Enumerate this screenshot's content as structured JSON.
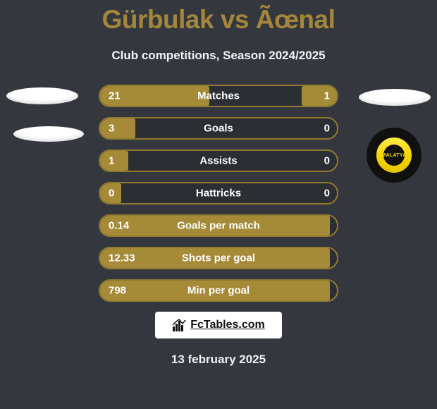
{
  "title": "Gürbulak vs Ãœnal",
  "subtitle": "Club competitions, Season 2024/2025",
  "accent_color": "#a58a37",
  "accent_border": "#8f7a30",
  "background_color": "#34383e",
  "badge_label": "MALATYA",
  "rows": [
    {
      "label": "Matches",
      "left_val": "21",
      "right_val": "1",
      "fill_pct": 46,
      "right_pill": true
    },
    {
      "label": "Goals",
      "left_val": "3",
      "right_val": "0",
      "fill_pct": 15,
      "right_pill": false
    },
    {
      "label": "Assists",
      "left_val": "1",
      "right_val": "0",
      "fill_pct": 12,
      "right_pill": false
    },
    {
      "label": "Hattricks",
      "left_val": "0",
      "right_val": "0",
      "fill_pct": 9,
      "right_pill": false
    },
    {
      "label": "Goals per match",
      "left_val": "0.14",
      "right_val": "",
      "fill_pct": 97,
      "right_pill": false
    },
    {
      "label": "Shots per goal",
      "left_val": "12.33",
      "right_val": "",
      "fill_pct": 97,
      "right_pill": false
    },
    {
      "label": "Min per goal",
      "left_val": "798",
      "right_val": "",
      "fill_pct": 97,
      "right_pill": false
    }
  ],
  "row_top_start": 120,
  "row_step": 46,
  "logo_text": "FcTables.com",
  "date_text": "13 february 2025"
}
